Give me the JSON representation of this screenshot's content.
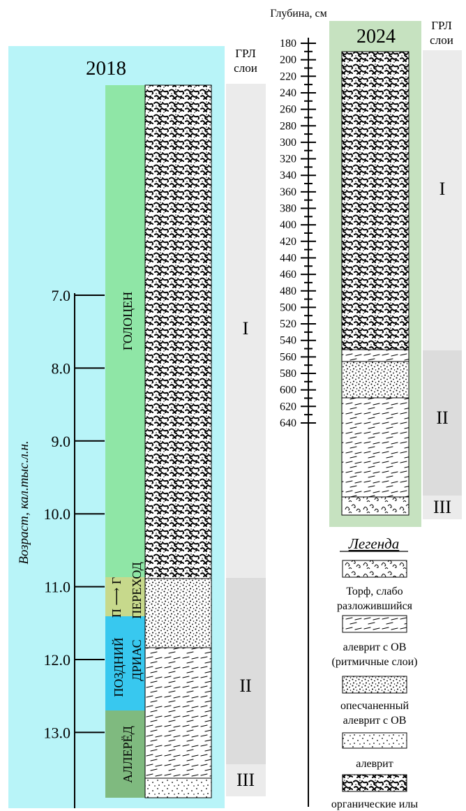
{
  "panel_2018": {
    "title": "2018",
    "gpr_header": [
      "ГРЛ",
      "слои"
    ],
    "age_axis_label": "Возраст, кал.тыс.л.н.",
    "age_ticks": [
      "7.0",
      "8.0",
      "9.0",
      "10.0",
      "11.0",
      "12.0",
      "13.0"
    ],
    "periods": [
      {
        "label": "ГОЛОЦЕН",
        "color": "#8fe6a6"
      },
      {
        "label": "П ⟶ Г",
        "label2": "ПЕРЕХОД",
        "color": "#c7d98c"
      },
      {
        "label": "ПОЗДНИЙ",
        "label2": "ДРИАС",
        "color": "#38c8ef"
      },
      {
        "label": "АЛЛЕРЁД",
        "color": "#7fba7f"
      }
    ],
    "gpr_layers": [
      "I",
      "II",
      "III"
    ]
  },
  "depth_axis": {
    "title": "Глубина, см",
    "ticks": [
      "180",
      "200",
      "220",
      "240",
      "260",
      "280",
      "300",
      "320",
      "340",
      "360",
      "380",
      "400",
      "420",
      "440",
      "460",
      "480",
      "500",
      "520",
      "540",
      "560",
      "580",
      "600",
      "620",
      "640"
    ]
  },
  "panel_2024": {
    "title": "2024",
    "gpr_header": [
      "ГРЛ",
      "слои"
    ],
    "gpr_layers": [
      "I",
      "II",
      "III"
    ]
  },
  "legend": {
    "title": "Легенда",
    "items": [
      {
        "pattern": "peat",
        "label_lines": [
          "Торф, слабо",
          "разложившийся"
        ]
      },
      {
        "pattern": "dashes",
        "label_lines": [
          "алеврит с ОВ",
          "(ритмичные слои)"
        ]
      },
      {
        "pattern": "dense-dots",
        "label_lines": [
          "опесчаненный",
          "алеврит с ОВ"
        ]
      },
      {
        "pattern": "dots",
        "label_lines": [
          "алеврит"
        ]
      },
      {
        "pattern": "worms",
        "label_lines": [
          "органические илы"
        ]
      }
    ]
  },
  "colors": {
    "panel_2018_bg": "#b8f4f8",
    "panel_2024_bg": "#c6e2c0",
    "gpr_light": "#ebebeb",
    "gpr_dark": "#dcdcdc"
  }
}
